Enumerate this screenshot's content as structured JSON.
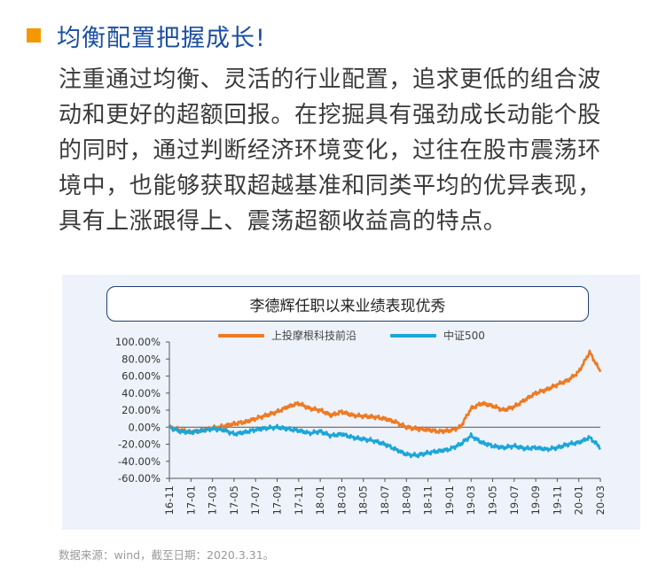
{
  "heading": {
    "title": "均衡配置把握成长!"
  },
  "paragraph": [
    "注重通过均衡、灵活的行业配置，追求更低的组合波",
    "动和更好的超额回报。在挖掘具有强劲成长动能个股",
    "的同时，通过判断经济环境变化，过往在股市震荡环",
    "境中，也能够获取超越基准和同类平均的优异表现，",
    "具有上涨跟得上、震荡超额收益高的特点。"
  ],
  "source_note": "数据来源：wind，截至日期：2020.3.31。",
  "colors": {
    "accent": "#f39800",
    "title_blue": "#1c4fa0",
    "series_fund": "#ee7a22",
    "series_index": "#1ba6d8"
  },
  "chart_data": {
    "type": "line",
    "title": "李德辉任职以来业绩表现优秀",
    "ylim": [
      -60,
      100
    ],
    "yticks": [
      "100.00%",
      "80.00%",
      "60.00%",
      "40.00%",
      "20.00%",
      "0.00%",
      "-20.00%",
      "-40.00%",
      "-60.00%"
    ],
    "ytick_values": [
      100,
      80,
      60,
      40,
      20,
      0,
      -20,
      -40,
      -60
    ],
    "xticks": [
      "16-11",
      "17-01",
      "17-03",
      "17-05",
      "17-07",
      "17-09",
      "17-11",
      "18-01",
      "18-03",
      "18-05",
      "18-07",
      "18-09",
      "18-11",
      "19-01",
      "19-03",
      "19-05",
      "19-07",
      "19-09",
      "19-11",
      "20-01",
      "20-03"
    ],
    "x_months": [
      "16-11",
      "16-12",
      "17-01",
      "17-02",
      "17-03",
      "17-04",
      "17-05",
      "17-06",
      "17-07",
      "17-08",
      "17-09",
      "17-10",
      "17-11",
      "17-12",
      "18-01",
      "18-02",
      "18-03",
      "18-04",
      "18-05",
      "18-06",
      "18-07",
      "18-08",
      "18-09",
      "18-10",
      "18-11",
      "18-12",
      "19-01",
      "19-02",
      "19-03",
      "19-04",
      "19-05",
      "19-06",
      "19-07",
      "19-08",
      "19-09",
      "19-10",
      "19-11",
      "19-12",
      "20-01",
      "20-02",
      "20-03"
    ],
    "series": [
      {
        "name": "上投摩根科技前沿",
        "color": "#ee7a22",
        "values": [
          0,
          -3,
          -6,
          -4,
          -1,
          1,
          4,
          6,
          10,
          14,
          18,
          24,
          28,
          22,
          20,
          14,
          18,
          14,
          13,
          12,
          10,
          6,
          0,
          -2,
          -3,
          -5,
          -4,
          0,
          22,
          28,
          25,
          20,
          24,
          32,
          40,
          44,
          50,
          55,
          65,
          88,
          65
        ]
      },
      {
        "name": "中证500",
        "color": "#1ba6d8",
        "values": [
          0,
          -5,
          -6,
          -4,
          -2,
          -3,
          -8,
          -6,
          -3,
          -1,
          0,
          -2,
          -4,
          -7,
          -5,
          -10,
          -8,
          -12,
          -14,
          -16,
          -20,
          -26,
          -32,
          -33,
          -30,
          -28,
          -26,
          -20,
          -10,
          -18,
          -22,
          -24,
          -22,
          -25,
          -24,
          -26,
          -24,
          -20,
          -18,
          -12,
          -24
        ]
      }
    ]
  }
}
